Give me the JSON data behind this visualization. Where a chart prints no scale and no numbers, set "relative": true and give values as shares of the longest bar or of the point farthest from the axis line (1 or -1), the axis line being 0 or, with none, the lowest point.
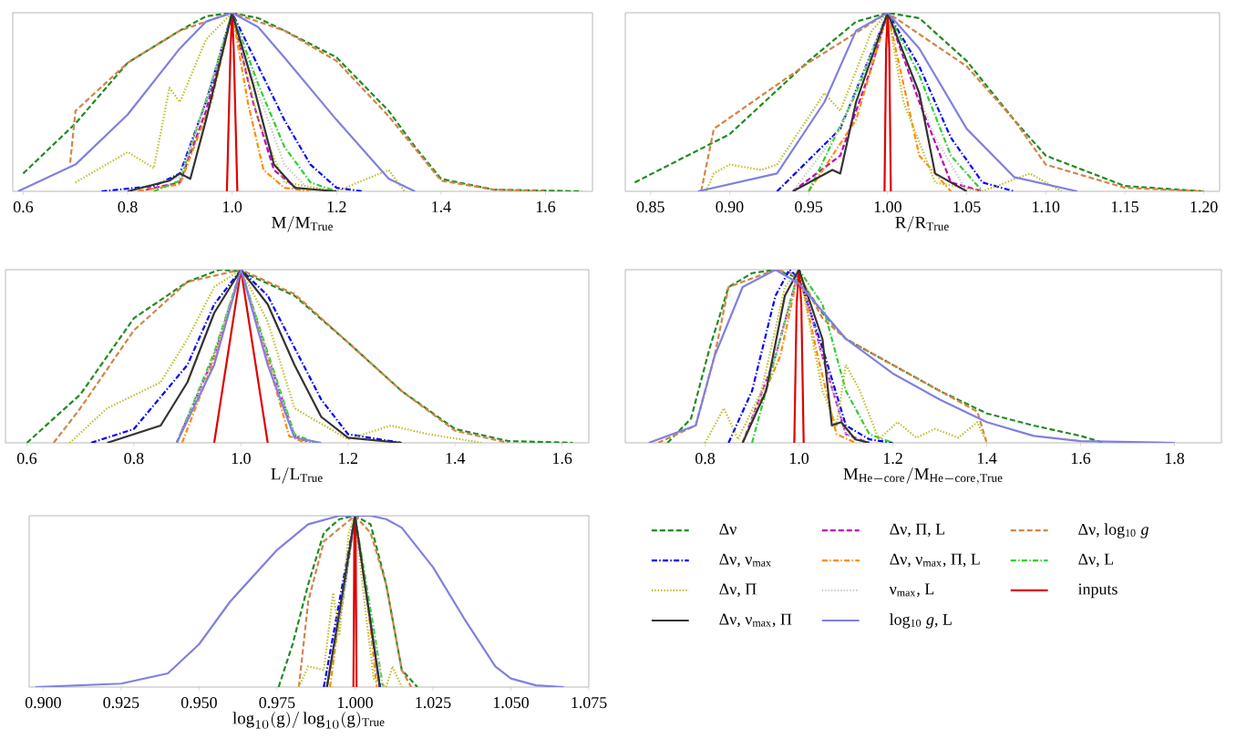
{
  "chart_data": [
    {
      "type": "line",
      "xlabel": "\\mathrm{M}/\\mathrm{M}_{\\mathrm{True}}",
      "relative": true,
      "tick_labels": "x",
      "xlim": [
        0.58,
        1.69
      ],
      "xticks": [
        0.6,
        0.8,
        {
          "value": 1.0,
          "label": "1.0"
        },
        1.2,
        1.4,
        1.6
      ],
      "series": [
        {
          "color": "#228b22",
          "line_style": "dashed",
          "x": [
            0.6,
            0.7,
            0.8,
            0.9,
            0.95,
            1.0,
            1.05,
            1.1,
            1.2,
            1.3,
            1.35,
            1.4,
            1.5,
            1.67
          ],
          "values": [
            0.1,
            0.38,
            0.72,
            0.9,
            0.98,
            1,
            0.97,
            0.9,
            0.75,
            0.45,
            0.25,
            0.07,
            0.01,
            0
          ]
        },
        {
          "color": "#bf00bf",
          "line_style": "dashed",
          "x": [
            0.82,
            0.9,
            0.95,
            1.0,
            1.04,
            1.08,
            1.13
          ],
          "values": [
            0,
            0.05,
            0.45,
            1,
            0.5,
            0.12,
            0
          ]
        },
        {
          "color": "#d2854a",
          "line_style": "dashed",
          "x": [
            0.69,
            0.7,
            0.8,
            0.9,
            1.0,
            1.1,
            1.2,
            1.3,
            1.4,
            1.5,
            1.6
          ],
          "values": [
            0.16,
            0.45,
            0.72,
            0.9,
            1,
            0.9,
            0.73,
            0.42,
            0.06,
            0.01,
            0
          ]
        },
        {
          "color": "#0000ff",
          "line_style": "dashdot",
          "x": [
            0.75,
            0.85,
            0.9,
            0.95,
            1.0,
            1.05,
            1.1,
            1.15,
            1.2,
            1.25
          ],
          "values": [
            0,
            0.03,
            0.1,
            0.5,
            1,
            0.7,
            0.4,
            0.15,
            0.02,
            0
          ]
        },
        {
          "color": "#ff8c00",
          "line_style": "dashdot",
          "x": [
            0.82,
            0.9,
            0.96,
            1.0,
            1.03,
            1.06,
            1.1,
            1.15
          ],
          "values": [
            0,
            0.04,
            0.5,
            1,
            0.5,
            0.12,
            0.02,
            0
          ]
        },
        {
          "color": "#32cd32",
          "line_style": "dashdot",
          "x": [
            0.85,
            0.9,
            0.96,
            1.0,
            1.05,
            1.1,
            1.15,
            1.2
          ],
          "values": [
            0,
            0.06,
            0.6,
            1,
            0.6,
            0.25,
            0.05,
            0
          ]
        },
        {
          "color": "#bcbd22",
          "line_style": "dotted",
          "x": [
            0.7,
            0.8,
            0.85,
            0.88,
            0.9,
            0.95,
            1.0,
            1.05,
            1.1,
            1.2,
            1.3,
            1.33
          ],
          "values": [
            0.05,
            0.22,
            0.13,
            0.58,
            0.5,
            0.85,
            1,
            0.4,
            0.05,
            0,
            0.12,
            0
          ]
        },
        {
          "color": "#c8c8c8",
          "line_style": "dotted",
          "x": [
            0.8,
            0.9,
            0.95,
            1.0,
            1.05,
            1.1,
            1.15
          ],
          "values": [
            0,
            0.08,
            0.5,
            1,
            0.55,
            0.15,
            0
          ]
        },
        {
          "color": "#e00000",
          "line_style": "solid",
          "x": [
            0.99,
            0.997,
            1.0,
            1.003,
            1.01
          ],
          "values": [
            0,
            0.8,
            1,
            0.8,
            0
          ]
        },
        {
          "color": "#333333",
          "line_style": "solid",
          "x": [
            0.8,
            0.88,
            0.9,
            0.92,
            0.95,
            1.0,
            1.04,
            1.08,
            1.12,
            1.2
          ],
          "values": [
            0,
            0.06,
            0.1,
            0.07,
            0.4,
            1,
            0.6,
            0.15,
            0.02,
            0
          ]
        },
        {
          "color": "#8080e0",
          "line_style": "solid",
          "x": [
            0.59,
            0.7,
            0.8,
            0.9,
            0.95,
            1.0,
            1.05,
            1.1,
            1.2,
            1.3,
            1.35
          ],
          "values": [
            0,
            0.15,
            0.43,
            0.8,
            0.95,
            1,
            0.92,
            0.75,
            0.4,
            0.07,
            0
          ]
        }
      ]
    },
    {
      "type": "line",
      "xlabel": "\\mathrm{R}/\\mathrm{R}_{\\mathrm{True}}",
      "relative": true,
      "tick_labels": "x",
      "xlim": [
        0.834,
        1.21
      ],
      "xticks": [
        0.85,
        {
          "value": 0.9,
          "label": "0.90"
        },
        0.95,
        {
          "value": 1.0,
          "label": "1.00"
        },
        1.05,
        {
          "value": 1.1,
          "label": "1.10"
        },
        1.15,
        {
          "value": 1.2,
          "label": "1.20"
        }
      ],
      "series": [
        {
          "color": "#228b22",
          "line_style": "dashed",
          "x": [
            0.84,
            0.9,
            0.95,
            0.98,
            1.0,
            1.02,
            1.05,
            1.08,
            1.1,
            1.15,
            1.2
          ],
          "values": [
            0.05,
            0.32,
            0.73,
            0.95,
            1,
            0.97,
            0.73,
            0.4,
            0.2,
            0.03,
            0
          ]
        },
        {
          "color": "#bf00bf",
          "line_style": "dashed",
          "x": [
            0.94,
            0.97,
            0.99,
            1.0,
            1.02,
            1.04,
            1.06
          ],
          "values": [
            0,
            0.2,
            0.7,
            1,
            0.5,
            0.05,
            0
          ]
        },
        {
          "color": "#d2854a",
          "line_style": "dashed",
          "x": [
            0.882,
            0.89,
            0.95,
            1.0,
            1.05,
            1.08,
            1.1,
            1.15,
            1.2
          ],
          "values": [
            0,
            0.35,
            0.72,
            1,
            0.7,
            0.4,
            0.15,
            0.02,
            0
          ]
        },
        {
          "color": "#0000ff",
          "line_style": "dashdot",
          "x": [
            0.93,
            0.97,
            1.0,
            1.02,
            1.04,
            1.06,
            1.08
          ],
          "values": [
            0,
            0.35,
            1,
            0.7,
            0.3,
            0.05,
            0
          ]
        },
        {
          "color": "#ff8c00",
          "line_style": "dashdot",
          "x": [
            0.95,
            0.98,
            1.0,
            1.01,
            1.02,
            1.04
          ],
          "values": [
            0,
            0.4,
            1,
            0.6,
            0.2,
            0
          ]
        },
        {
          "color": "#32cd32",
          "line_style": "dashdot",
          "x": [
            0.95,
            0.98,
            1.0,
            1.02,
            1.04,
            1.06
          ],
          "values": [
            0,
            0.55,
            1,
            0.65,
            0.2,
            0
          ]
        },
        {
          "color": "#bcbd22",
          "line_style": "dotted",
          "x": [
            0.885,
            0.89,
            0.9,
            0.92,
            0.93,
            0.96,
            0.97,
            0.99,
            1.0,
            1.01,
            1.03,
            1.06,
            1.09,
            1.11
          ],
          "values": [
            0,
            0.1,
            0.15,
            0.12,
            0.15,
            0.55,
            0.45,
            0.9,
            1,
            0.5,
            0.05,
            0,
            0.1,
            0
          ]
        },
        {
          "color": "#c8c8c8",
          "line_style": "dotted",
          "x": [
            0.94,
            0.97,
            1.0,
            1.03,
            1.05
          ],
          "values": [
            0,
            0.35,
            1,
            0.3,
            0
          ]
        },
        {
          "color": "#e00000",
          "line_style": "solid",
          "x": [
            0.998,
            0.999,
            1.0,
            1.001,
            1.002
          ],
          "values": [
            0,
            0.8,
            1,
            0.8,
            0
          ]
        },
        {
          "color": "#333333",
          "line_style": "solid",
          "x": [
            0.94,
            0.965,
            0.97,
            0.98,
            1.0,
            1.02,
            1.03,
            1.05
          ],
          "values": [
            0,
            0.12,
            0.1,
            0.5,
            1,
            0.55,
            0.1,
            0
          ]
        },
        {
          "color": "#8080e0",
          "line_style": "solid",
          "x": [
            0.88,
            0.93,
            0.96,
            0.98,
            1.0,
            1.02,
            1.05,
            1.08,
            1.12
          ],
          "values": [
            0,
            0.1,
            0.5,
            0.9,
            1,
            0.8,
            0.35,
            0.08,
            0
          ]
        }
      ]
    },
    {
      "type": "line",
      "xlabel": "\\mathrm{L}/\\mathrm{L}_{\\mathrm{True}}",
      "relative": true,
      "tick_labels": "x",
      "xlim": [
        0.56,
        1.65
      ],
      "xticks": [
        0.6,
        0.8,
        {
          "value": 1.0,
          "label": "1.0"
        },
        1.2,
        1.4,
        1.6
      ],
      "series": [
        {
          "color": "#228b22",
          "line_style": "dashed",
          "x": [
            0.6,
            0.7,
            0.8,
            0.9,
            0.96,
            1.0,
            1.1,
            1.2,
            1.3,
            1.4,
            1.5,
            1.62
          ],
          "values": [
            0,
            0.28,
            0.72,
            0.93,
            1,
            0.99,
            0.85,
            0.58,
            0.3,
            0.08,
            0.01,
            0
          ]
        },
        {
          "color": "#bf00bf",
          "line_style": "dashed",
          "x": [
            0.88,
            0.95,
            1.0,
            1.05,
            1.1,
            1.13
          ],
          "values": [
            0,
            0.5,
            1,
            0.5,
            0.04,
            0
          ]
        },
        {
          "color": "#d2854a",
          "line_style": "dashed",
          "x": [
            0.65,
            0.7,
            0.8,
            0.9,
            1.0,
            1.1,
            1.2,
            1.3,
            1.4,
            1.5
          ],
          "values": [
            0,
            0.2,
            0.65,
            0.93,
            1,
            0.86,
            0.58,
            0.3,
            0.07,
            0
          ]
        },
        {
          "color": "#0000ff",
          "line_style": "dashdot",
          "x": [
            0.72,
            0.8,
            0.9,
            0.95,
            1.0,
            1.05,
            1.1,
            1.15,
            1.2,
            1.3
          ],
          "values": [
            0,
            0.08,
            0.45,
            0.8,
            1,
            0.85,
            0.55,
            0.25,
            0.05,
            0
          ]
        },
        {
          "color": "#ff8c00",
          "line_style": "dashdot",
          "x": [
            0.89,
            0.95,
            1.0,
            1.05,
            1.09,
            1.12
          ],
          "values": [
            0,
            0.48,
            1,
            0.48,
            0.04,
            0
          ]
        },
        {
          "color": "#32cd32",
          "line_style": "dashdot",
          "x": [
            0.88,
            0.95,
            1.0,
            1.05,
            1.1,
            1.14
          ],
          "values": [
            0,
            0.52,
            1,
            0.52,
            0.05,
            0
          ]
        },
        {
          "color": "#bcbd22",
          "line_style": "dotted",
          "x": [
            0.68,
            0.75,
            0.85,
            0.9,
            0.95,
            1.0,
            1.05,
            1.1,
            1.2,
            1.28,
            1.35,
            1.45
          ],
          "values": [
            0,
            0.2,
            0.35,
            0.6,
            0.9,
            1,
            0.7,
            0.2,
            0.02,
            0.1,
            0.05,
            0
          ]
        },
        {
          "color": "#c8c8c8",
          "line_style": "dotted",
          "x": [
            0.88,
            0.95,
            1.0,
            1.05,
            1.1,
            1.13
          ],
          "values": [
            0,
            0.5,
            1,
            0.5,
            0.04,
            0
          ]
        },
        {
          "color": "#e00000",
          "line_style": "solid",
          "x": [
            0.95,
            0.98,
            1.0,
            1.02,
            1.05
          ],
          "values": [
            0,
            0.6,
            1,
            0.6,
            0
          ]
        },
        {
          "color": "#333333",
          "line_style": "solid",
          "x": [
            0.75,
            0.85,
            0.9,
            0.95,
            1.0,
            1.05,
            1.1,
            1.15,
            1.2,
            1.3
          ],
          "values": [
            0,
            0.1,
            0.35,
            0.75,
            1,
            0.8,
            0.45,
            0.15,
            0.03,
            0
          ]
        },
        {
          "color": "#8080e0",
          "line_style": "solid",
          "x": [
            0.88,
            0.95,
            1.0,
            1.05,
            1.1,
            1.15
          ],
          "values": [
            0,
            0.45,
            1,
            0.45,
            0.03,
            0
          ]
        }
      ]
    },
    {
      "type": "line",
      "xlabel": "\\mathrm{M}_{\\mathrm{He-core}}/\\mathrm{M}_{\\mathrm{He-core,True}}",
      "relative": true,
      "tick_labels": "x",
      "xlim": [
        0.63,
        1.9
      ],
      "xticks": [
        0.8,
        {
          "value": 1.0,
          "label": "1.0"
        },
        1.2,
        1.4,
        1.6,
        1.8
      ],
      "series": [
        {
          "color": "#228b22",
          "line_style": "dashed",
          "x": [
            0.72,
            0.77,
            0.81,
            0.85,
            0.9,
            0.95,
            1.0,
            1.05,
            1.1,
            1.2,
            1.3,
            1.4,
            1.5,
            1.6,
            1.65
          ],
          "values": [
            0,
            0.14,
            0.55,
            0.9,
            0.98,
            1,
            0.95,
            0.75,
            0.6,
            0.45,
            0.3,
            0.17,
            0.1,
            0.04,
            0
          ]
        },
        {
          "color": "#bf00bf",
          "line_style": "dashed",
          "x": [
            0.88,
            0.95,
            1.0,
            1.05,
            1.1,
            1.15
          ],
          "values": [
            0,
            0.5,
            1,
            0.5,
            0.05,
            0
          ]
        },
        {
          "color": "#d2854a",
          "line_style": "dashed",
          "x": [
            0.7,
            0.78,
            0.82,
            0.85,
            0.95,
            1.0,
            1.05,
            1.1,
            1.2,
            1.3,
            1.38,
            1.4
          ],
          "values": [
            0,
            0.1,
            0.5,
            0.9,
            1,
            0.97,
            0.72,
            0.6,
            0.45,
            0.3,
            0.18,
            0
          ]
        },
        {
          "color": "#0000ff",
          "line_style": "dashdot",
          "x": [
            0.85,
            0.9,
            0.95,
            0.98,
            1.0,
            1.05,
            1.1,
            1.15,
            1.2
          ],
          "values": [
            0,
            0.3,
            0.85,
            1,
            0.95,
            0.55,
            0.1,
            0.02,
            0
          ]
        },
        {
          "color": "#ff8c00",
          "line_style": "dashdot",
          "x": [
            0.88,
            0.96,
            1.0,
            1.04,
            1.08,
            1.12
          ],
          "values": [
            0,
            0.5,
            1,
            0.5,
            0.05,
            0
          ]
        },
        {
          "color": "#32cd32",
          "line_style": "dashdot",
          "x": [
            0.9,
            0.96,
            1.0,
            1.05,
            1.1,
            1.15,
            1.2
          ],
          "values": [
            0,
            0.6,
            1,
            0.8,
            0.3,
            0.05,
            0
          ]
        },
        {
          "color": "#bcbd22",
          "line_style": "dotted",
          "x": [
            0.8,
            0.84,
            0.87,
            0.92,
            0.97,
            1.0,
            1.05,
            1.08,
            1.1,
            1.13,
            1.17,
            1.21,
            1.25,
            1.29,
            1.34,
            1.38,
            1.4
          ],
          "values": [
            0,
            0.2,
            0.02,
            0.3,
            0.9,
            1,
            0.3,
            0.1,
            0.45,
            0.3,
            0.02,
            0.12,
            0.03,
            0.08,
            0.03,
            0.12,
            0
          ]
        },
        {
          "color": "#c8c8c8",
          "line_style": "dotted",
          "x": [
            0.88,
            0.95,
            1.0,
            1.05,
            1.1,
            1.15
          ],
          "values": [
            0,
            0.5,
            1,
            0.5,
            0.05,
            0
          ]
        },
        {
          "color": "#e00000",
          "line_style": "solid",
          "x": [
            0.99,
            0.995,
            1.0,
            1.005,
            1.01
          ],
          "values": [
            0,
            0.8,
            1,
            0.8,
            0
          ]
        },
        {
          "color": "#333333",
          "line_style": "solid",
          "x": [
            0.88,
            0.93,
            0.97,
            1.0,
            1.05,
            1.07,
            1.09,
            1.12,
            1.15
          ],
          "values": [
            0,
            0.3,
            0.85,
            1,
            0.6,
            0.1,
            0.12,
            0.02,
            0
          ]
        },
        {
          "color": "#8080e0",
          "line_style": "solid",
          "x": [
            0.68,
            0.78,
            0.82,
            0.88,
            0.95,
            1.0,
            1.1,
            1.2,
            1.3,
            1.4,
            1.5,
            1.6,
            1.8
          ],
          "values": [
            0,
            0.1,
            0.5,
            0.9,
            1,
            0.92,
            0.6,
            0.4,
            0.25,
            0.12,
            0.04,
            0.01,
            0
          ]
        }
      ]
    },
    {
      "type": "line",
      "xlabel": "\\log_{10}(\\mathrm{g})/\\log_{10}(\\mathrm{g})_{\\mathrm{True}}",
      "relative": true,
      "tick_labels": "x",
      "legend": "right",
      "xlim": [
        0.8955,
        1.075
      ],
      "xticks": [
        {
          "value": 0.9,
          "label": "0.900"
        },
        0.925,
        {
          "value": 0.95,
          "label": "0.950"
        },
        0.975,
        {
          "value": 1.0,
          "label": "1.000"
        },
        1.025,
        {
          "value": 1.05,
          "label": "1.050"
        },
        1.075
      ],
      "series": [
        {
          "name": "Δν",
          "color": "#228b22",
          "line_style": "dashed",
          "x": [
            0.9755,
            0.98,
            0.985,
            0.99,
            0.995,
            1.0,
            1.005,
            1.01,
            1.015,
            1.02
          ],
          "values": [
            0,
            0.25,
            0.6,
            0.9,
            0.98,
            1,
            0.95,
            0.6,
            0.1,
            0
          ]
        },
        {
          "name": "Δν, Π, L",
          "color": "#bf00bf",
          "line_style": "dashed",
          "x": [
            0.991,
            0.996,
            1.0,
            1.004,
            1.008
          ],
          "values": [
            0,
            0.5,
            1,
            0.5,
            0
          ]
        },
        {
          "name": "Δν, log$_{10}$ *g*",
          "color": "#d2854a",
          "line_style": "dashed",
          "x": [
            0.982,
            0.985,
            0.99,
            1.0,
            1.005,
            1.01,
            1.015,
            1.018
          ],
          "values": [
            0,
            0.5,
            0.85,
            1,
            0.9,
            0.6,
            0.1,
            0
          ]
        },
        {
          "name": "Δν, ν$_{max}$",
          "color": "#0000ff",
          "line_style": "dashdot",
          "x": [
            0.99,
            0.995,
            1.0,
            1.004,
            1.008
          ],
          "values": [
            0,
            0.5,
            1,
            0.5,
            0
          ]
        },
        {
          "name": "Δν, ν$_{max}$, Π, L",
          "color": "#ff8c00",
          "line_style": "dashdot",
          "x": [
            0.992,
            0.996,
            1.0,
            1.004,
            1.007
          ],
          "values": [
            0,
            0.55,
            1,
            0.5,
            0
          ]
        },
        {
          "name": "Δν, L",
          "color": "#32cd32",
          "line_style": "dashdot",
          "x": [
            0.991,
            0.996,
            1.0,
            1.005,
            1.009
          ],
          "values": [
            0,
            0.5,
            1,
            0.45,
            0
          ]
        },
        {
          "name": "Δν, Π",
          "color": "#bcbd22",
          "line_style": "dotted",
          "x": [
            0.982,
            0.985,
            0.99,
            0.993,
            0.995,
            0.998,
            1.0,
            1.003,
            1.006,
            1.01,
            1.012,
            1.015
          ],
          "values": [
            0,
            0.12,
            0.1,
            0.55,
            0.3,
            0.9,
            1,
            0.5,
            0.05,
            0,
            0.12,
            0
          ]
        },
        {
          "name": "ν$_{max}$, L",
          "color": "#c8c8c8",
          "line_style": "dotted",
          "x": [
            0.991,
            0.996,
            1.0,
            1.004,
            1.009
          ],
          "values": [
            0,
            0.5,
            1,
            0.5,
            0
          ]
        },
        {
          "name": "inputs",
          "color": "#e00000",
          "line_style": "solid",
          "x": [
            0.9995,
            0.9998,
            1.0,
            1.0002,
            1.0005
          ],
          "values": [
            0,
            0.9,
            1,
            0.9,
            0
          ]
        },
        {
          "name": "Δν, ν$_{max}$, Π",
          "color": "#333333",
          "line_style": "solid",
          "x": [
            0.991,
            0.996,
            1.0,
            1.004,
            1.008
          ],
          "values": [
            0,
            0.55,
            1,
            0.5,
            0
          ]
        },
        {
          "name": "log$_{10}$ *g*, L",
          "color": "#8080e0",
          "line_style": "solid",
          "x": [
            0.8975,
            0.925,
            0.94,
            0.95,
            0.96,
            0.975,
            0.985,
            0.995,
            1.005,
            1.01,
            1.015,
            1.025,
            1.035,
            1.045,
            1.05,
            1.058,
            1.067
          ],
          "values": [
            0,
            0.02,
            0.08,
            0.25,
            0.5,
            0.8,
            0.95,
            1,
            1,
            0.98,
            0.93,
            0.7,
            0.4,
            0.12,
            0.05,
            0.01,
            0
          ]
        }
      ]
    }
  ]
}
